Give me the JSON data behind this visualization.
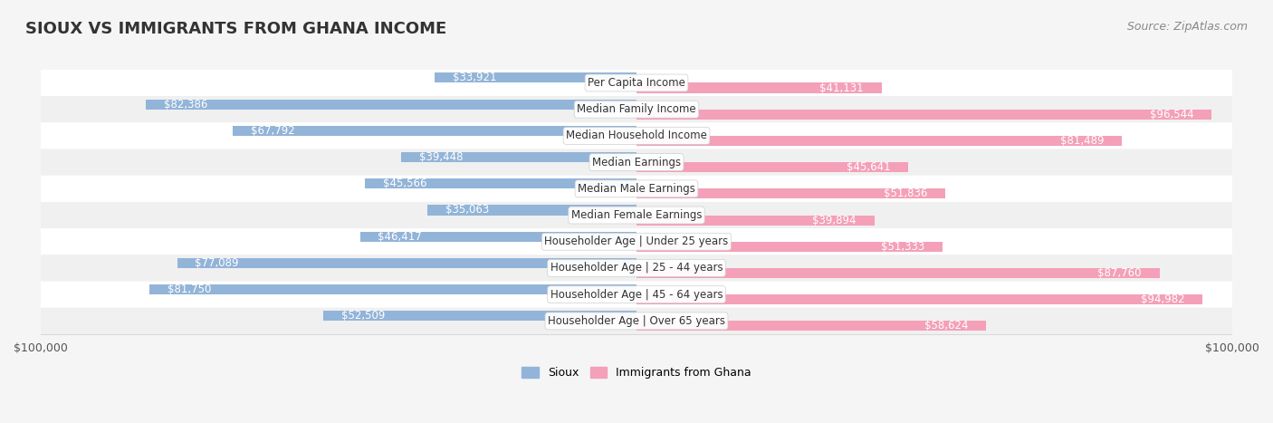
{
  "title": "SIOUX VS IMMIGRANTS FROM GHANA INCOME",
  "source": "Source: ZipAtlas.com",
  "categories": [
    "Per Capita Income",
    "Median Family Income",
    "Median Household Income",
    "Median Earnings",
    "Median Male Earnings",
    "Median Female Earnings",
    "Householder Age | Under 25 years",
    "Householder Age | 25 - 44 years",
    "Householder Age | 45 - 64 years",
    "Householder Age | Over 65 years"
  ],
  "sioux_values": [
    33921,
    82386,
    67792,
    39448,
    45566,
    35063,
    46417,
    77089,
    81750,
    52509
  ],
  "ghana_values": [
    41131,
    96544,
    81489,
    45641,
    51836,
    39894,
    51333,
    87760,
    94982,
    58624
  ],
  "sioux_labels": [
    "$33,921",
    "$82,386",
    "$67,792",
    "$39,448",
    "$45,566",
    "$35,063",
    "$46,417",
    "$77,089",
    "$81,750",
    "$52,509"
  ],
  "ghana_labels": [
    "$41,131",
    "$96,544",
    "$81,489",
    "$45,641",
    "$51,836",
    "$39,894",
    "$51,333",
    "$87,760",
    "$94,982",
    "$58,624"
  ],
  "sioux_color": "#92b4d8",
  "ghana_color": "#f4a0b8",
  "sioux_label_color_inside": "#ffffff",
  "sioux_label_color_outside": "#555555",
  "ghana_label_color_inside": "#ffffff",
  "ghana_label_color_outside": "#555555",
  "bar_height": 0.38,
  "axis_max": 100000,
  "legend_sioux": "Sioux",
  "legend_ghana": "Immigrants from Ghana",
  "background_color": "#f5f5f5",
  "row_colors": [
    "#ffffff",
    "#f0f0f0"
  ],
  "title_fontsize": 13,
  "source_fontsize": 9,
  "label_fontsize": 8.5,
  "category_fontsize": 8.5
}
